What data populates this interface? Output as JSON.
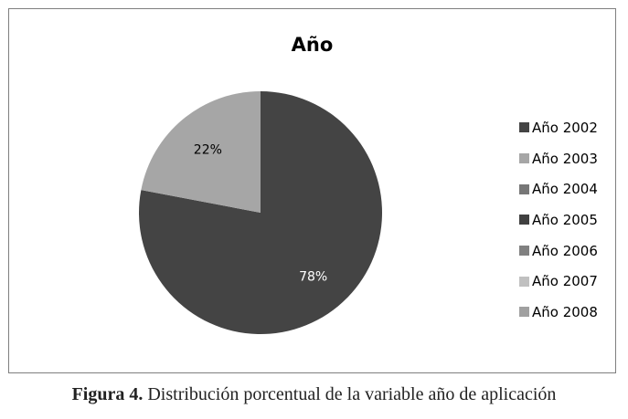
{
  "chart_data": {
    "type": "pie",
    "title": "Año",
    "categories": [
      "Año 2002",
      "Año 2003",
      "Año 2004",
      "Año 2005",
      "Año 2006",
      "Año 2007",
      "Año 2008"
    ],
    "values": [
      78,
      22,
      0,
      0,
      0,
      0,
      0
    ],
    "data_labels": [
      "78%",
      "22%",
      "",
      "",
      "",
      "",
      ""
    ],
    "colors": [
      "#444444",
      "#a6a6a6",
      "#777777",
      "#404040",
      "#808080",
      "#c0c0c0",
      "#a0a0a0"
    ],
    "legend_position": "right",
    "start_angle_deg": 0,
    "direction": "clockwise"
  },
  "caption": {
    "label": "Figura 4.",
    "text": "Distribución porcentual de la variable año de aplicación"
  }
}
